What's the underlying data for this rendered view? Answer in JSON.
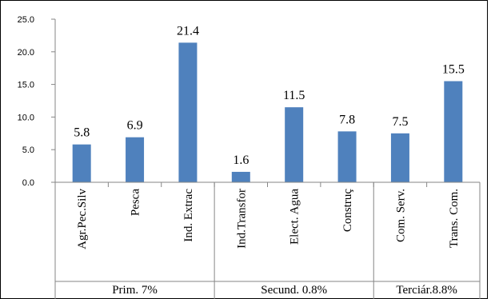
{
  "chart_data": {
    "type": "bar",
    "title": "",
    "xlabel": "",
    "ylabel": "",
    "ylim": [
      0,
      25
    ],
    "yticks": [
      "0.0",
      "5.0",
      "10.0",
      "15.0",
      "20.0",
      "25.0"
    ],
    "grid": false,
    "legend": "none",
    "bar_color": "#4F81BD",
    "categories": [
      "Agr.Pec.Silv",
      "Pesca",
      "Ind. Extrac",
      "Ind.Transfor",
      "Elect. Agua",
      "Construç",
      "Com. Serv.",
      "Trans. Com."
    ],
    "values": [
      5.8,
      6.9,
      21.4,
      1.6,
      11.5,
      7.8,
      7.5,
      15.5
    ],
    "data_labels": [
      "5.8",
      "6.9",
      "21.4",
      "1.6",
      "11.5",
      "7.8",
      "7.5",
      "15.5"
    ],
    "groups": [
      {
        "label": "Prim. 7%",
        "count": 3
      },
      {
        "label": "Secund. 0.8%",
        "count": 3
      },
      {
        "label": "Terciár.8.8%",
        "count": 2
      }
    ]
  }
}
